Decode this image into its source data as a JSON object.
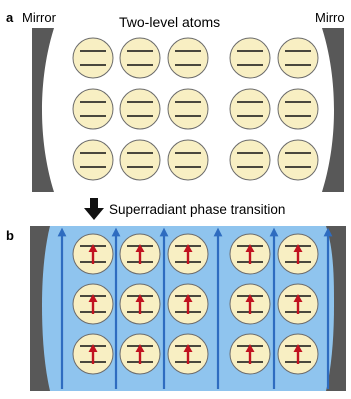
{
  "panel_a": {
    "letter": "a",
    "mirror_left": "Mirror",
    "mirror_right": "Mirro",
    "title": "Two-level atoms",
    "rows": 3,
    "cols": 5
  },
  "transition": {
    "label": "Superradiant phase transition"
  },
  "panel_b": {
    "letter": "b",
    "rows": 3,
    "cols": 5
  },
  "colors": {
    "mirror": "#585858",
    "atom_fill": "#f8efc3",
    "atom_stroke": "#6b6b6b",
    "field_blue": "#8fc4ee",
    "field_arrow": "#2e6cc0",
    "spin_arrow": "#c1121f"
  }
}
